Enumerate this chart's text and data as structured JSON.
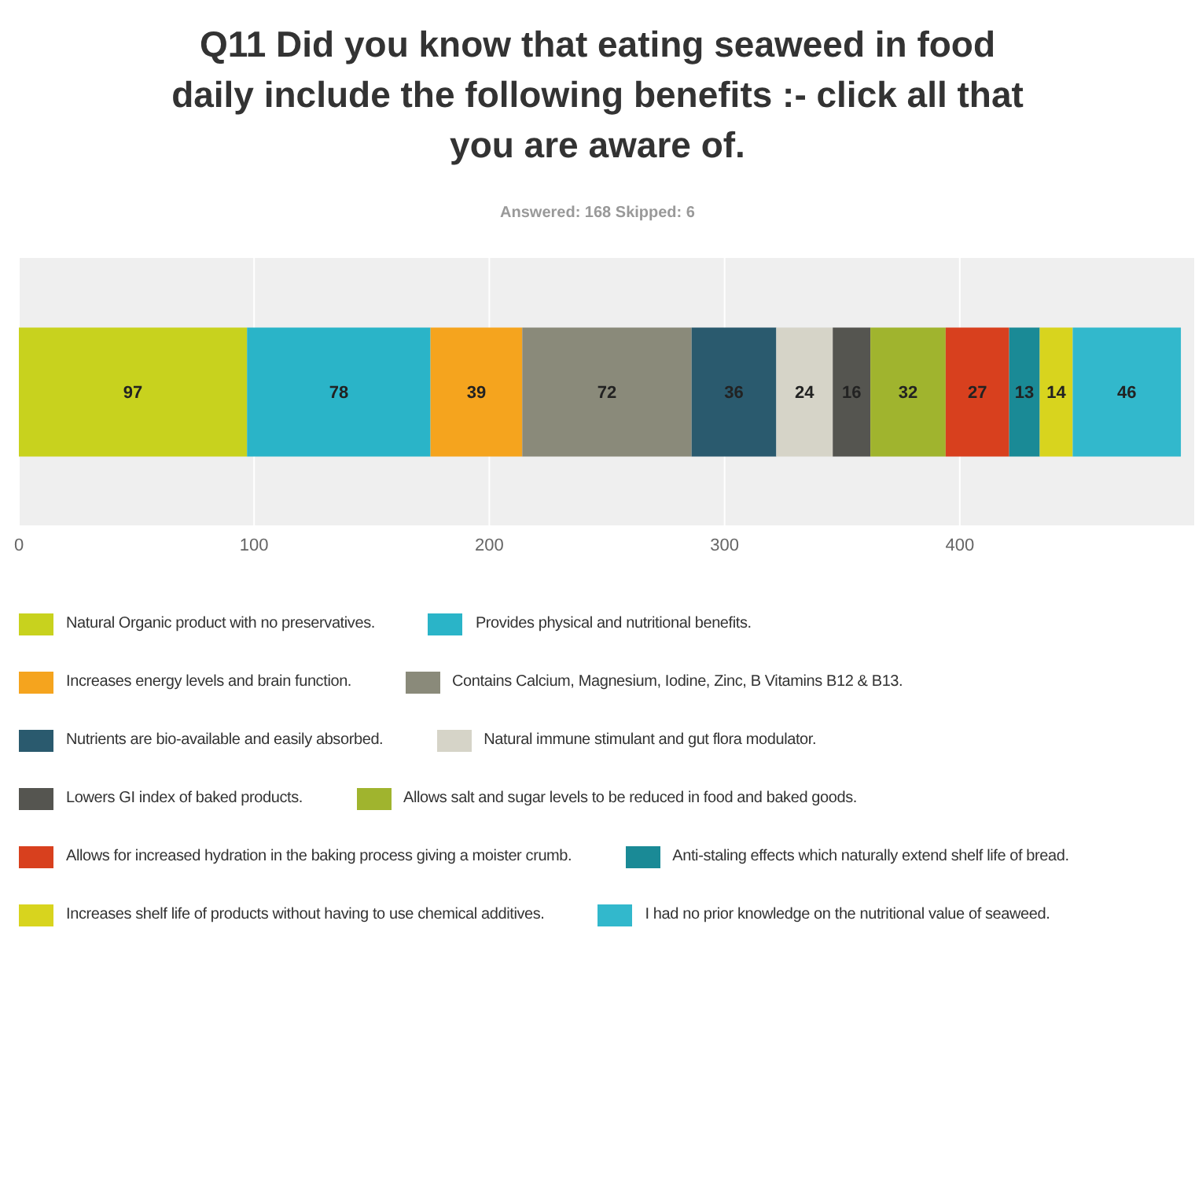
{
  "chart_data": {
    "type": "bar",
    "orientation": "horizontal",
    "stacked": true,
    "title": "Q11 Did you know that eating seaweed in food daily include the following benefits :- click all that you are aware of.",
    "subtitle": "Answered: 168    Skipped: 6",
    "categories": [
      null
    ],
    "xlim": [
      0,
      500
    ],
    "xticks": [
      0,
      100,
      200,
      300,
      400
    ],
    "grid": "x",
    "legend": "bottom",
    "data_labels": true,
    "series": [
      {
        "name": "Natural Organic product with no preservatives.",
        "color": "#c8d21e",
        "values": [
          97
        ]
      },
      {
        "name": "Provides physical and nutritional benefits.",
        "color": "#2ab4c8",
        "values": [
          78
        ]
      },
      {
        "name": "Increases energy levels and brain function.",
        "color": "#f5a41e",
        "values": [
          39
        ]
      },
      {
        "name": "Contains Calcium, Magnesium, Iodine, Zinc, B Vitamins B12 & B13.",
        "color": "#8a8a7a",
        "values": [
          72
        ]
      },
      {
        "name": "Nutrients are bio-available and easily absorbed.",
        "color": "#2a5a6e",
        "values": [
          36
        ]
      },
      {
        "name": "Natural immune stimulant and gut flora modulator.",
        "color": "#d6d4c8",
        "values": [
          24
        ]
      },
      {
        "name": "Lowers GI index of baked products.",
        "color": "#555550",
        "values": [
          16
        ]
      },
      {
        "name": "Allows salt and sugar levels to be reduced in food and baked goods.",
        "color": "#a0b42e",
        "values": [
          32
        ]
      },
      {
        "name": "Allows for increased hydration in the baking process giving a moister crumb.",
        "color": "#d8401e",
        "values": [
          27
        ]
      },
      {
        "name": "Anti-staling effects which naturally extend shelf life of bread.",
        "color": "#1a8a96",
        "values": [
          13
        ]
      },
      {
        "name": "Increases shelf life of products without having to use chemical additives.",
        "color": "#d8d41e",
        "values": [
          14
        ]
      },
      {
        "name": "I had no prior knowledge on the nutritional value of seaweed.",
        "color": "#32b8cc",
        "values": [
          46
        ]
      }
    ]
  }
}
